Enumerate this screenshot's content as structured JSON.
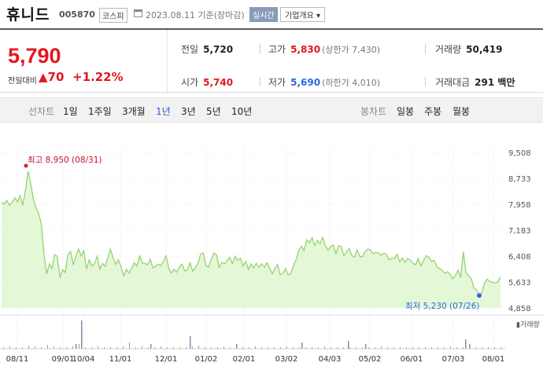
{
  "header": {
    "name": "휴니드",
    "code": "005870",
    "market": "코스피",
    "date": "2023.08.11  기준(장마감)",
    "realtime": "실시간",
    "company_info": "기업개요 ▾"
  },
  "price": {
    "current": "5,790",
    "change_label": "전일대비",
    "change_amount": "▲70",
    "change_pct": "+1.22%"
  },
  "stats": {
    "prev_label": "전일",
    "prev": "5,720",
    "high_label": "고가",
    "high": "5,830",
    "upper_limit": "(상한가 7,430)",
    "volume_label": "거래량",
    "volume": "50,419",
    "open_label": "시가",
    "open": "5,740",
    "low_label": "저가",
    "low": "5,690",
    "lower_limit": "(하한가 4,010)",
    "amount_label": "거래대금",
    "amount": "291 백만"
  },
  "tabs": {
    "line_chart": "선차트",
    "periods": [
      "1일",
      "1주일",
      "3개월",
      "1년",
      "3년",
      "5년",
      "10년"
    ],
    "active": "1년",
    "candle_chart": "봉차트",
    "candle_periods": [
      "일봉",
      "주봉",
      "월봉"
    ]
  },
  "colors": {
    "up": "#e4171e",
    "down": "#2a6ae0",
    "line": "#8fd16a",
    "fill": "#e4f7d6",
    "active_tab": "#2e5bd0"
  },
  "chart_data": {
    "type": "area",
    "x_tick_labels": [
      "08/11",
      "09/01",
      "10/04",
      "11/01",
      "12/01",
      "01/02",
      "02/01",
      "03/02",
      "04/03",
      "05/02",
      "06/01",
      "07/03",
      "08/01"
    ],
    "y_tick_labels": [
      "9,508",
      "8,733",
      "7,958",
      "7,183",
      "6,408",
      "5,633",
      "4,858"
    ],
    "ylim": [
      4858,
      9508
    ],
    "annotations": [
      {
        "label": "최고 8,950 (08/31)",
        "type": "max",
        "value": 8950,
        "date": "08/31"
      },
      {
        "label": "최저 5,230 (07/26)",
        "type": "min",
        "value": 5230,
        "date": "07/26"
      }
    ],
    "volume_label": "▮거래량",
    "values": [
      8020,
      7960,
      8070,
      7930,
      8020,
      8150,
      8030,
      8210,
      7930,
      8380,
      8950,
      8560,
      8110,
      7850,
      7680,
      7360,
      6450,
      5870,
      6180,
      6040,
      6450,
      6400,
      5770,
      6000,
      5920,
      6450,
      6550,
      6150,
      6400,
      6620,
      6410,
      6570,
      6020,
      6300,
      6110,
      6180,
      6400,
      6010,
      6190,
      6100,
      6350,
      6610,
      6370,
      6160,
      6300,
      6090,
      5820,
      6010,
      5900,
      6040,
      6210,
      6110,
      6420,
      6200,
      6190,
      6150,
      6320,
      6060,
      6100,
      6170,
      6120,
      6250,
      6420,
      6030,
      5900,
      6010,
      5930,
      6080,
      6170,
      5960,
      6000,
      6210,
      5960,
      6060,
      6190,
      6470,
      6500,
      6130,
      6080,
      6310,
      6500,
      6440,
      6070,
      6220,
      6180,
      6280,
      6370,
      6180,
      6400,
      6280,
      6350,
      6110,
      6250,
      6010,
      6170,
      6050,
      6200,
      6070,
      6180,
      6080,
      6210,
      6050,
      5880,
      6040,
      6160,
      5850,
      5900,
      6030,
      5850,
      5890,
      6130,
      6300,
      6590,
      6700,
      6570,
      6900,
      6810,
      6960,
      6730,
      6880,
      6780,
      6970,
      6720,
      6580,
      6690,
      6740,
      6480,
      6720,
      6690,
      6420,
      6540,
      6630,
      6420,
      6380,
      6590,
      6400,
      6390,
      6540,
      6620,
      6590,
      6480,
      6520,
      6510,
      6430,
      6500,
      6460,
      6300,
      6350,
      6330,
      6460,
      6240,
      6350,
      6220,
      6340,
      6290,
      6200,
      6150,
      6340,
      6120,
      6270,
      6420,
      6380,
      6250,
      6280,
      6090,
      6040,
      5990,
      5890,
      5940,
      5860,
      5730,
      5830,
      5990,
      5770,
      6540,
      5910,
      5820,
      5730,
      5450,
      5390,
      5230,
      5320,
      5610,
      5720,
      5650,
      5620,
      5610,
      5640,
      5790
    ]
  }
}
